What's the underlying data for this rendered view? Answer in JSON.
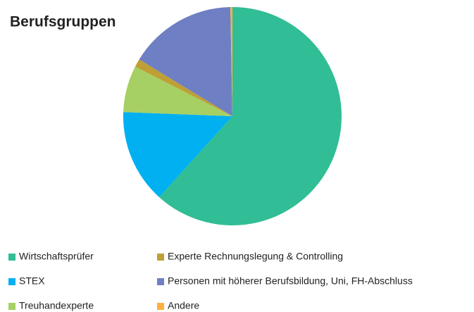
{
  "chart_data": {
    "type": "pie",
    "title": "Berufsgruppen",
    "categories": [
      "Wirtschaftsprüfer",
      "STEX",
      "Treuhandexperte",
      "Experte Rechnungslegung & Controlling",
      "Personen mit höherer Berufsbildung, Uni, FH-Abschluss",
      "Andere"
    ],
    "values": [
      61.7,
      13.9,
      6.9,
      1.2,
      16,
      0.3
    ],
    "colors": [
      "#31bd95",
      "#00b0f0",
      "#a6d063",
      "#bf9f36",
      "#6f7fc3",
      "#ffb040"
    ]
  }
}
